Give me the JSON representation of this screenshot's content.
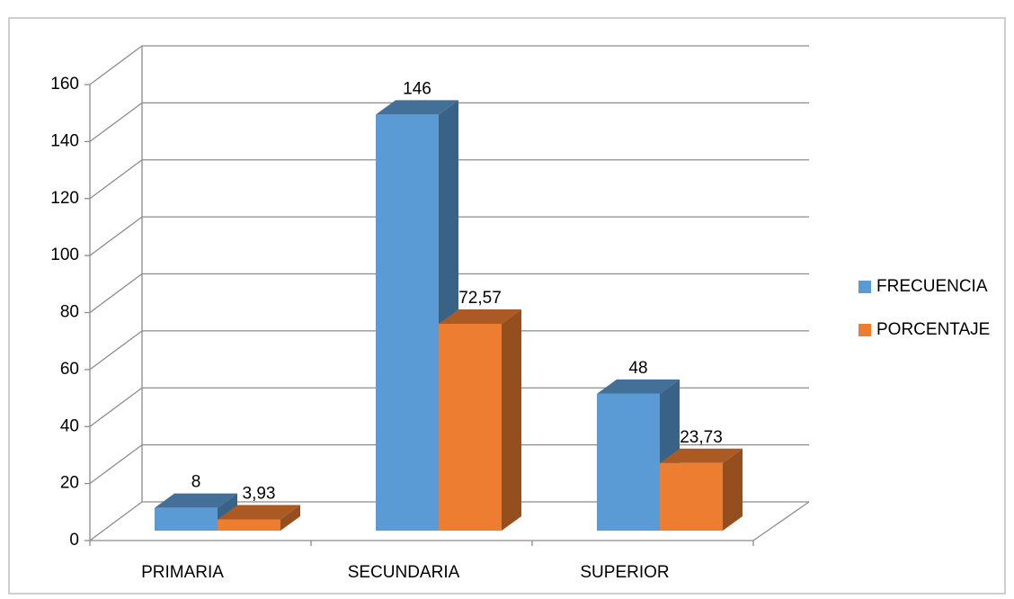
{
  "chart_data": {
    "type": "bar3d",
    "categories": [
      "PRIMARIA",
      "SECUNDARIA",
      "SUPERIOR"
    ],
    "series": [
      {
        "name": "FRECUENCIA",
        "color": "#5b9bd5",
        "values": [
          8,
          146,
          48
        ]
      },
      {
        "name": "PORCENTAJE",
        "color": "#ed7d31",
        "values": [
          3.93,
          72.57,
          23.73
        ],
        "value_labels": [
          "3,93",
          "72,57",
          "23,73"
        ]
      }
    ],
    "ylim": [
      0,
      160
    ],
    "yticks": [
      0,
      20,
      40,
      60,
      80,
      100,
      120,
      140,
      160
    ],
    "grid": true,
    "legend": "right"
  }
}
